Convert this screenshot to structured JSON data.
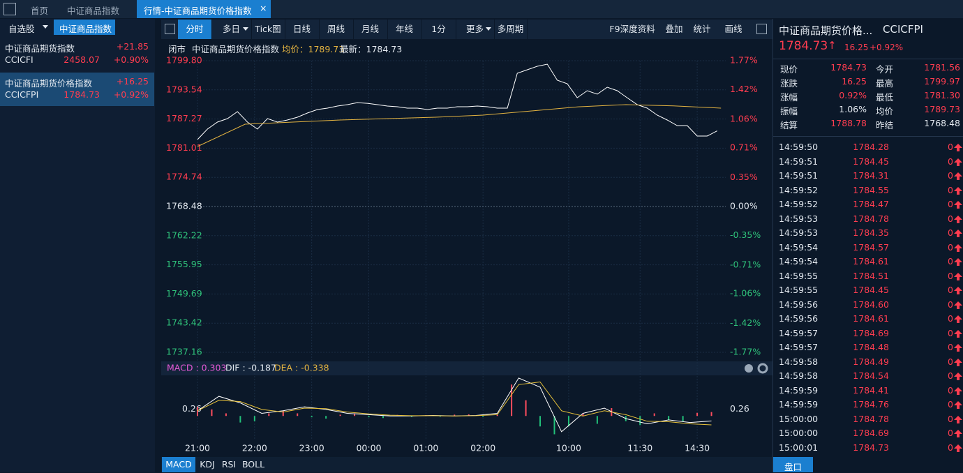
{
  "tabs": {
    "home": "首页",
    "index": "中证商品指数",
    "active": "行情-中证商品期货价格指数"
  },
  "watchlist": {
    "tabs": [
      "自选股",
      "中证商品指数"
    ],
    "items": [
      {
        "name": "中证商品期货指数",
        "change": "+21.85",
        "code": "CCICFI",
        "price": "2458.07",
        "pct": "+0.90%"
      },
      {
        "name": "中证商品期货价格指数",
        "change": "+16.25",
        "code": "CCICFPI",
        "price": "1784.73",
        "pct": "+0.92%"
      }
    ]
  },
  "toolbar": {
    "left": [
      "分时",
      "多日",
      "Tick图",
      "日线",
      "周线",
      "月线",
      "年线",
      "1分",
      "更多",
      "多周期"
    ],
    "right": [
      "F9深度资料",
      "叠加",
      "统计",
      "画线"
    ]
  },
  "info": [
    "闭市",
    "中证商品期货价格指数",
    "均价：1789.73",
    "最新：1784.73"
  ],
  "chart_data": [
    {
      "type": "line",
      "xlim": [
        0,
        555
      ],
      "xticks": [
        {
          "value": 0,
          "label": "21:00"
        },
        {
          "value": 60,
          "label": "22:00"
        },
        {
          "value": 120,
          "label": "23:00"
        },
        {
          "value": 180,
          "label": "00:00"
        },
        {
          "value": 240,
          "label": "01:00"
        },
        {
          "value": 300,
          "label": "02:00"
        },
        {
          "value": 390,
          "label": "10:00"
        },
        {
          "value": 465,
          "label": "11:30"
        },
        {
          "value": 525,
          "label": "14:30"
        }
      ],
      "ylim": [
        1737.16,
        1799.8
      ],
      "yticks": [
        {
          "value": 1799.8,
          "label": "1799.80"
        },
        1793.54,
        1787.27,
        1781.01,
        1774.74,
        1768.48,
        1762.22,
        1755.95,
        1749.69,
        1743.42,
        1737.16
      ],
      "y2lim": [
        -1.77,
        1.77
      ],
      "y2ticks": [
        {
          "value": 1.77,
          "label": "1.77%"
        },
        {
          "value": 1.42,
          "label": "1.42%"
        },
        {
          "value": 1.06,
          "label": "1.06%"
        },
        {
          "value": 0.71,
          "label": "0.71%"
        },
        {
          "value": 0.35,
          "label": "0.35%"
        },
        {
          "value": 0,
          "label": "0.00%"
        },
        {
          "value": -0.35,
          "label": "-0.35%"
        },
        {
          "value": -0.71,
          "label": "-0.71%"
        },
        {
          "value": -1.06,
          "label": "-1.06%"
        },
        {
          "value": -1.42,
          "label": "-1.42%"
        },
        {
          "value": -1.77,
          "label": "-1.77%"
        }
      ],
      "grid": true,
      "series": [
        {
          "color": "#ffffff",
          "x": [
            0,
            10.5,
            21,
            31.5,
            42,
            52.5,
            63,
            73.5,
            84,
            94.5,
            105,
            115.5,
            126,
            136.5,
            147,
            157.5,
            168,
            178.5,
            189,
            199.5,
            210,
            220.5,
            231,
            241.5,
            252,
            262.5,
            273,
            283.5,
            294,
            304.5,
            315,
            325.5,
            336,
            346.5,
            357,
            367.5,
            378,
            388.5,
            399,
            409.5,
            420,
            430.5,
            441,
            451.5,
            462,
            472.5,
            483,
            493.5,
            504,
            514.5,
            525,
            535.5,
            546
          ],
          "values": [
            1782.86,
            1785.11,
            1786.61,
            1787.36,
            1788.86,
            1786.61,
            1785.11,
            1787.36,
            1786.61,
            1787.06,
            1787.66,
            1788.56,
            1789.31,
            1789.61,
            1790.06,
            1790.36,
            1790.8,
            1790.65,
            1790.36,
            1790.06,
            1789.91,
            1789.61,
            1789.61,
            1789.31,
            1789.61,
            1789.61,
            1789.91,
            1789.91,
            1790.06,
            1789.91,
            1789.61,
            1789.61,
            1797.1,
            1797.85,
            1798.6,
            1799.05,
            1795.6,
            1794.85,
            1791.85,
            1793.35,
            1792.6,
            1794.1,
            1793.35,
            1791.85,
            1790.36,
            1789.61,
            1788.11,
            1787.06,
            1785.86,
            1785.86,
            1783.61,
            1783.61,
            1784.73
          ]
        },
        {
          "color": "#e3b341",
          "x": [
            0,
            50,
            100,
            150,
            200,
            250,
            300,
            350,
            400,
            450,
            500,
            550
          ],
          "values": [
            1781.37,
            1786.16,
            1786.61,
            1787.06,
            1787.36,
            1787.66,
            1788.11,
            1789.0,
            1789.9,
            1790.36,
            1790.1,
            1789.61
          ]
        }
      ]
    },
    {
      "type": "bar",
      "labels": [
        "MACD : 0.303",
        "DIF : -0.187",
        "DEA : -0.338"
      ],
      "xlim": [
        0,
        555
      ],
      "ylim": [
        -0.9,
        1.5
      ],
      "yticks": [
        0.26
      ],
      "up_color": "#ff4d5e",
      "down_color": "#22c17a",
      "x": [
        0,
        15,
        30,
        45,
        60,
        75,
        90,
        105,
        120,
        135,
        150,
        165,
        180,
        195,
        210,
        225,
        240,
        255,
        270,
        285,
        300,
        315,
        330,
        345,
        360,
        375,
        390,
        405,
        420,
        435,
        450,
        465,
        480,
        495,
        510,
        525,
        540
      ],
      "values": [
        0.35,
        0.25,
        0.1,
        -0.25,
        -0.2,
        0.1,
        0.2,
        0.1,
        -0.05,
        -0.1,
        0.05,
        0.1,
        -0.05,
        -0.08,
        0.04,
        -0.04,
        0.03,
        -0.03,
        0.05,
        0.06,
        -0.04,
        0.04,
        1.2,
        0.6,
        -0.4,
        -0.7,
        -0.4,
        0.1,
        -0.3,
        0.3,
        -0.2,
        -0.35,
        0.1,
        -0.15,
        -0.2,
        0.12,
        0.15
      ],
      "series": [
        {
          "color": "#ffffff",
          "x": [
            0,
            22.5,
            45,
            67.5,
            90,
            112.5,
            135,
            157.5,
            180,
            202.5,
            225,
            247.5,
            270,
            292.5,
            315,
            337.5,
            360,
            382.5,
            405,
            427.5,
            450,
            472.5,
            495,
            517.5,
            540
          ],
          "values": [
            0.2,
            0.75,
            0.5,
            0.1,
            0.2,
            0.35,
            0.25,
            0.1,
            0.05,
            0.0,
            0.0,
            0.02,
            0.0,
            0.02,
            0.1,
            1.45,
            1.1,
            -0.6,
            0.1,
            0.3,
            -0.1,
            -0.3,
            -0.15,
            -0.25,
            -0.19
          ]
        },
        {
          "color": "#e8c23a",
          "x": [
            0,
            22.5,
            45,
            67.5,
            90,
            112.5,
            135,
            157.5,
            180,
            202.5,
            225,
            247.5,
            270,
            292.5,
            315,
            337.5,
            360,
            382.5,
            405,
            427.5,
            450,
            472.5,
            495,
            517.5,
            540
          ],
          "values": [
            0.2,
            0.6,
            0.55,
            0.25,
            0.15,
            0.3,
            0.28,
            0.15,
            0.08,
            0.03,
            0.01,
            0.01,
            0.0,
            0.01,
            0.05,
            1.2,
            1.3,
            0.2,
            0.0,
            0.2,
            0.05,
            -0.2,
            -0.22,
            -0.3,
            -0.34
          ]
        }
      ]
    }
  ],
  "indicator_tabs": [
    "MACD",
    "KDJ",
    "RSI",
    "BOLL"
  ],
  "quote": {
    "title": "中证商品期货价格...",
    "code": "CCICFPI",
    "price": "1784.73",
    "change": "16.25",
    "pct": "+0.92%",
    "stats": [
      [
        "现价",
        "1784.73",
        "今开",
        "1781.56"
      ],
      [
        "涨跌",
        "16.25",
        "最高",
        "1799.97"
      ],
      [
        "涨幅",
        "0.92%",
        "最低",
        "1781.30"
      ],
      [
        "振幅",
        "1.06%",
        "均价",
        "1789.73"
      ],
      [
        "结算",
        "1788.78",
        "昨结",
        "1768.48"
      ]
    ]
  },
  "ticks": [
    [
      "14:59:50",
      "1784.28",
      "0"
    ],
    [
      "14:59:51",
      "1784.45",
      "0"
    ],
    [
      "14:59:51",
      "1784.31",
      "0"
    ],
    [
      "14:59:52",
      "1784.55",
      "0"
    ],
    [
      "14:59:52",
      "1784.47",
      "0"
    ],
    [
      "14:59:53",
      "1784.78",
      "0"
    ],
    [
      "14:59:53",
      "1784.35",
      "0"
    ],
    [
      "14:59:54",
      "1784.57",
      "0"
    ],
    [
      "14:59:54",
      "1784.61",
      "0"
    ],
    [
      "14:59:55",
      "1784.51",
      "0"
    ],
    [
      "14:59:55",
      "1784.45",
      "0"
    ],
    [
      "14:59:56",
      "1784.60",
      "0"
    ],
    [
      "14:59:56",
      "1784.61",
      "0"
    ],
    [
      "14:59:57",
      "1784.69",
      "0"
    ],
    [
      "14:59:57",
      "1784.48",
      "0"
    ],
    [
      "14:59:58",
      "1784.49",
      "0"
    ],
    [
      "14:59:58",
      "1784.54",
      "0"
    ],
    [
      "14:59:59",
      "1784.41",
      "0"
    ],
    [
      "14:59:59",
      "1784.76",
      "0"
    ],
    [
      "15:00:00",
      "1784.78",
      "0"
    ],
    [
      "15:00:00",
      "1784.69",
      "0"
    ],
    [
      "15:00:01",
      "1784.73",
      "0"
    ]
  ],
  "footer_tab": "盘口"
}
